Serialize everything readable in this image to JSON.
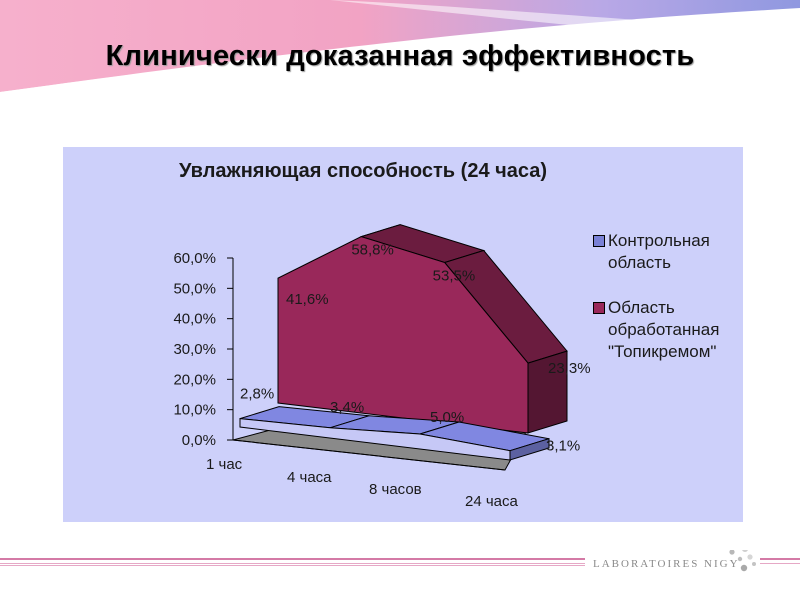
{
  "slide": {
    "title": "Клинически доказанная эффективность",
    "brand": "LABORATOIRES NIGY"
  },
  "colors": {
    "header_pink": "#f4a6c6",
    "header_blue": "#9aa0e0",
    "panel_bg": "#cdd0fa",
    "series_control": "#7a81d6",
    "series_treated": "#99285a",
    "footer_line": "#d47aa6"
  },
  "chart_data": {
    "type": "area",
    "style": "3d",
    "title": "Увлажняющая способность (24 часа)",
    "categories": [
      "1 час",
      "4 часа",
      "8 часов",
      "24 часа"
    ],
    "y_ticks": [
      "60,0%",
      "50,0%",
      "40,0%",
      "30,0%",
      "20,0%",
      "10,0%",
      "0,0%"
    ],
    "ylim": [
      0,
      60
    ],
    "series": [
      {
        "name": "Контрольная область",
        "color": "#7a81d6",
        "values": [
          2.8,
          3.4,
          5.0,
          3.1
        ],
        "labels": [
          "2,8%",
          "3,4%",
          "5,0%",
          "3,1%"
        ]
      },
      {
        "name": "Область обработанная \"Топикремом\"",
        "color": "#99285a",
        "values": [
          41.6,
          58.8,
          53.5,
          23.3
        ],
        "labels": [
          "41,6%",
          "58,8%",
          "53,5%",
          "23,3%"
        ]
      }
    ],
    "legend": [
      {
        "text": "Контрольная\nобласть",
        "color": "#7a81d6"
      },
      {
        "text": "Область\nобработанная\n\"Топикремом\"",
        "color": "#99285a"
      }
    ],
    "legend_position": "right"
  }
}
